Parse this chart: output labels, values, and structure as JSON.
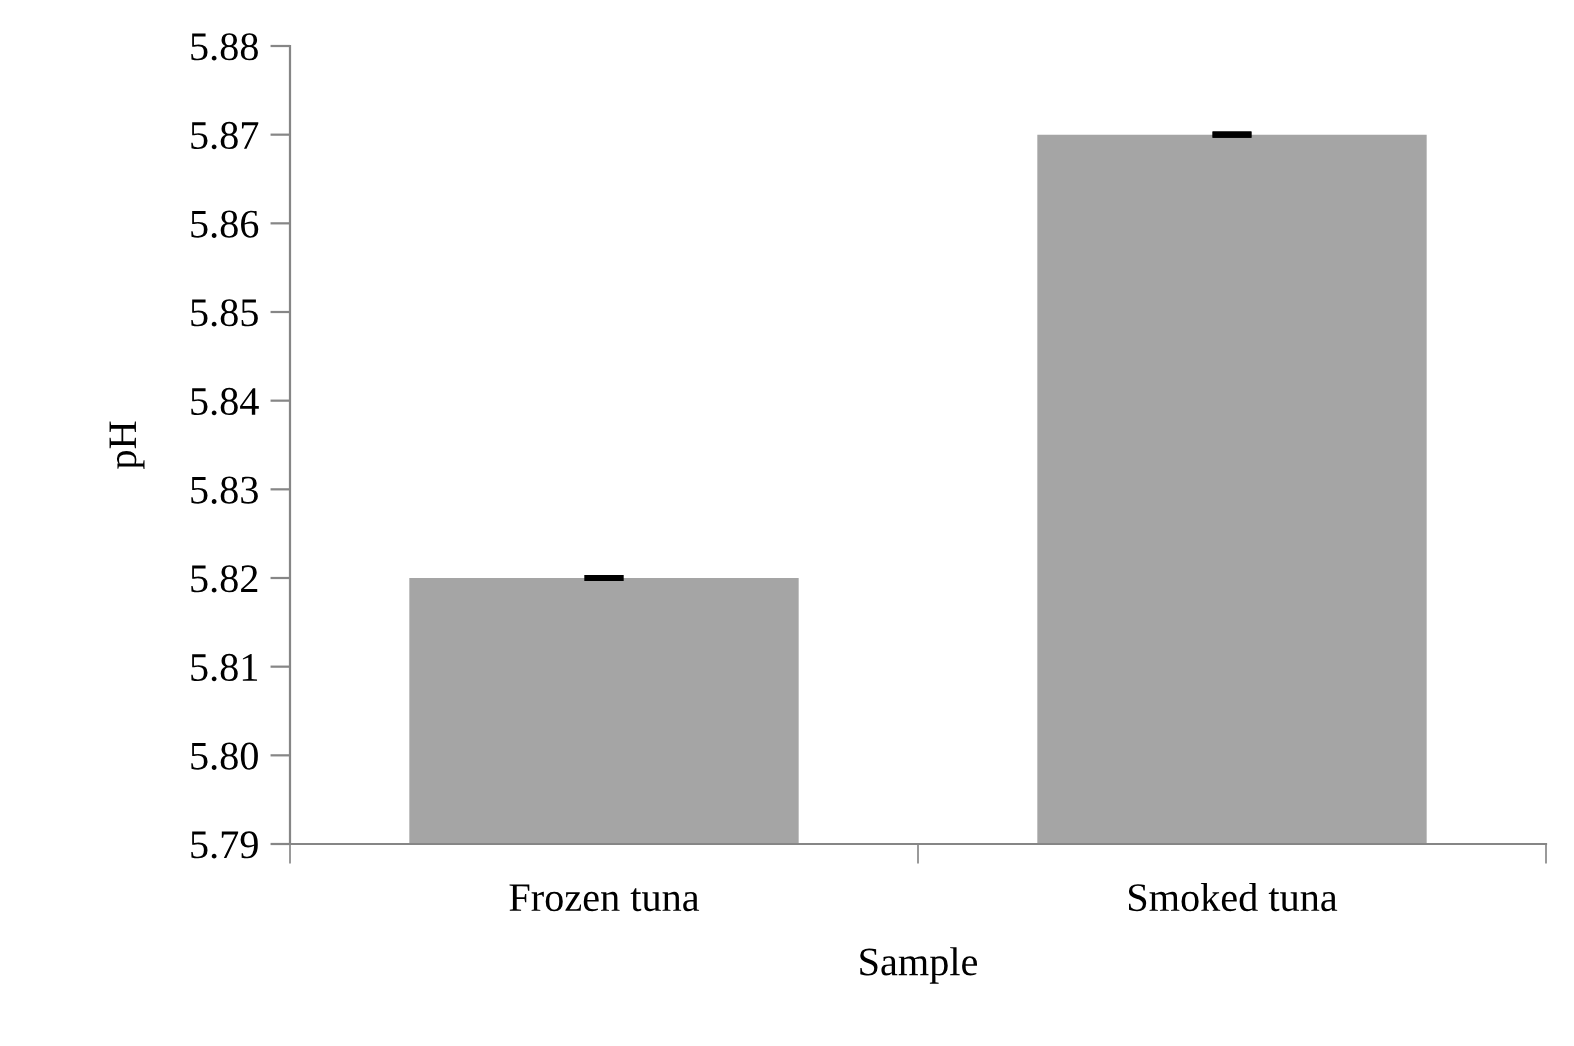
{
  "chart_data": {
    "type": "bar",
    "xlabel": "Sample",
    "ylabel": "pH",
    "categories": [
      "Frozen tuna",
      "Smoked tuna"
    ],
    "values": [
      5.82,
      5.87
    ],
    "errors": [
      0,
      0
    ],
    "color": "#a5a5a5",
    "ylim": [
      5.79,
      5.88
    ],
    "yticks": [
      {
        "value": 5.79,
        "label": "5.79"
      },
      {
        "value": 5.8,
        "label": "5.80"
      },
      {
        "value": 5.81,
        "label": "5.81"
      },
      {
        "value": 5.82,
        "label": "5.82"
      },
      {
        "value": 5.83,
        "label": "5.83"
      },
      {
        "value": 5.84,
        "label": "5.84"
      },
      {
        "value": 5.85,
        "label": "5.85"
      },
      {
        "value": 5.86,
        "label": "5.86"
      },
      {
        "value": 5.87,
        "label": "5.87"
      },
      {
        "value": 5.88,
        "label": "5.88"
      }
    ],
    "grid": false,
    "legend": false
  }
}
